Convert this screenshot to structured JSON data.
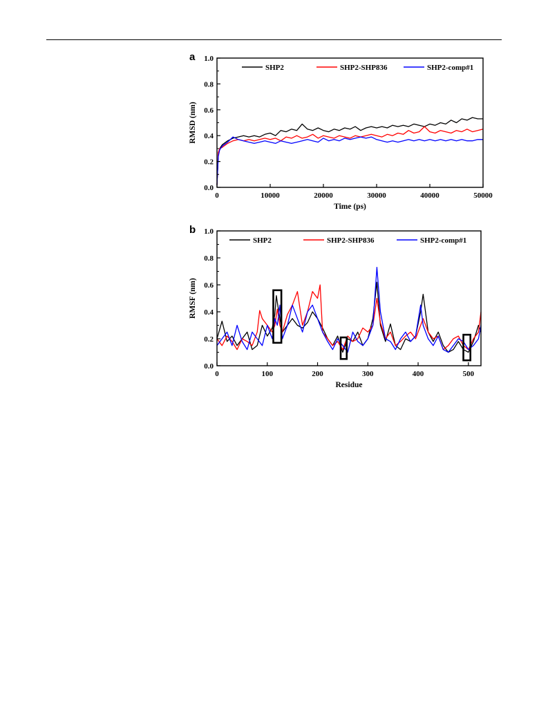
{
  "chart_data": [
    {
      "panel_label": "a",
      "type": "line",
      "xlabel": "Time (ps)",
      "ylabel": "RMSD (nm)",
      "xlim": [
        0,
        50000
      ],
      "ylim": [
        0.0,
        1.0
      ],
      "xticks": [
        "0",
        "10000",
        "20000",
        "30000",
        "40000",
        "50000"
      ],
      "yticks": [
        "0.0",
        "0.2",
        "0.4",
        "0.6",
        "0.8",
        "1.0"
      ],
      "legend_placement": "top",
      "grid": false,
      "series": [
        {
          "name": "SHP2",
          "color": "#000000",
          "x": [
            0,
            250,
            500,
            1000,
            2000,
            3000,
            4000,
            5000,
            6000,
            7000,
            8000,
            9000,
            10000,
            11000,
            12000,
            13000,
            14000,
            15000,
            16000,
            17000,
            18000,
            19000,
            20000,
            21000,
            22000,
            23000,
            24000,
            25000,
            26000,
            27000,
            28000,
            29000,
            30000,
            31000,
            32000,
            33000,
            34000,
            35000,
            36000,
            37000,
            38000,
            39000,
            40000,
            41000,
            42000,
            43000,
            44000,
            45000,
            46000,
            47000,
            48000,
            49000,
            50000
          ],
          "values": [
            0.02,
            0.25,
            0.3,
            0.33,
            0.36,
            0.38,
            0.39,
            0.4,
            0.39,
            0.4,
            0.39,
            0.41,
            0.42,
            0.4,
            0.44,
            0.43,
            0.45,
            0.44,
            0.49,
            0.45,
            0.44,
            0.46,
            0.44,
            0.43,
            0.45,
            0.44,
            0.46,
            0.45,
            0.47,
            0.44,
            0.46,
            0.47,
            0.46,
            0.47,
            0.46,
            0.48,
            0.47,
            0.48,
            0.47,
            0.49,
            0.48,
            0.47,
            0.49,
            0.48,
            0.5,
            0.49,
            0.52,
            0.5,
            0.53,
            0.52,
            0.54,
            0.53,
            0.53
          ]
        },
        {
          "name": "SHP2-SHP836",
          "color": "#ff0000",
          "x": [
            0,
            250,
            500,
            1000,
            2000,
            3000,
            4000,
            5000,
            6000,
            7000,
            8000,
            9000,
            10000,
            11000,
            12000,
            13000,
            14000,
            15000,
            16000,
            17000,
            18000,
            19000,
            20000,
            21000,
            22000,
            23000,
            24000,
            25000,
            26000,
            27000,
            28000,
            29000,
            30000,
            31000,
            32000,
            33000,
            34000,
            35000,
            36000,
            37000,
            38000,
            39000,
            40000,
            41000,
            42000,
            43000,
            44000,
            45000,
            46000,
            47000,
            48000,
            49000,
            50000
          ],
          "values": [
            0.02,
            0.27,
            0.3,
            0.31,
            0.34,
            0.36,
            0.37,
            0.36,
            0.37,
            0.36,
            0.37,
            0.38,
            0.37,
            0.38,
            0.36,
            0.39,
            0.38,
            0.4,
            0.38,
            0.39,
            0.41,
            0.38,
            0.4,
            0.39,
            0.38,
            0.4,
            0.39,
            0.38,
            0.4,
            0.39,
            0.4,
            0.41,
            0.4,
            0.39,
            0.41,
            0.4,
            0.42,
            0.41,
            0.44,
            0.42,
            0.43,
            0.47,
            0.43,
            0.42,
            0.44,
            0.43,
            0.42,
            0.44,
            0.43,
            0.45,
            0.43,
            0.44,
            0.45
          ]
        },
        {
          "name": "SHP2-comp#1",
          "color": "#0000ff",
          "x": [
            0,
            250,
            500,
            1000,
            2000,
            3000,
            4000,
            5000,
            6000,
            7000,
            8000,
            9000,
            10000,
            11000,
            12000,
            13000,
            14000,
            15000,
            16000,
            17000,
            18000,
            19000,
            20000,
            21000,
            22000,
            23000,
            24000,
            25000,
            26000,
            27000,
            28000,
            29000,
            30000,
            31000,
            32000,
            33000,
            34000,
            35000,
            36000,
            37000,
            38000,
            39000,
            40000,
            41000,
            42000,
            43000,
            44000,
            45000,
            46000,
            47000,
            48000,
            49000,
            50000
          ],
          "values": [
            0.02,
            0.24,
            0.29,
            0.32,
            0.35,
            0.39,
            0.37,
            0.36,
            0.35,
            0.34,
            0.35,
            0.36,
            0.35,
            0.34,
            0.36,
            0.35,
            0.34,
            0.35,
            0.36,
            0.37,
            0.36,
            0.35,
            0.38,
            0.36,
            0.37,
            0.36,
            0.38,
            0.37,
            0.38,
            0.39,
            0.38,
            0.39,
            0.37,
            0.36,
            0.35,
            0.36,
            0.35,
            0.36,
            0.37,
            0.36,
            0.37,
            0.36,
            0.37,
            0.36,
            0.37,
            0.36,
            0.37,
            0.36,
            0.37,
            0.36,
            0.36,
            0.37,
            0.37
          ]
        }
      ]
    },
    {
      "panel_label": "b",
      "type": "line",
      "xlabel": "Residue",
      "ylabel": "RMSF (nm)",
      "xlim": [
        0,
        525
      ],
      "ylim": [
        0.0,
        1.0
      ],
      "xticks": [
        "0",
        "100",
        "200",
        "300",
        "400",
        "500"
      ],
      "yticks": [
        "0.0",
        "0.2",
        "0.4",
        "0.6",
        "0.8",
        "1.0"
      ],
      "legend_placement": "top",
      "grid": false,
      "highlight_boxes": [
        {
          "x": [
            112,
            128
          ],
          "y": [
            0.17,
            0.56
          ]
        },
        {
          "x": [
            246,
            258
          ],
          "y": [
            0.05,
            0.21
          ]
        },
        {
          "x": [
            490,
            504
          ],
          "y": [
            0.04,
            0.23
          ]
        }
      ],
      "series": [
        {
          "name": "SHP2",
          "color": "#000000",
          "x": [
            0,
            10,
            20,
            30,
            40,
            50,
            60,
            70,
            80,
            90,
            100,
            110,
            115,
            118,
            120,
            125,
            130,
            140,
            150,
            160,
            170,
            180,
            190,
            200,
            210,
            220,
            230,
            240,
            250,
            260,
            270,
            280,
            290,
            300,
            310,
            318,
            325,
            335,
            345,
            355,
            365,
            375,
            385,
            395,
            405,
            410,
            420,
            430,
            440,
            450,
            460,
            470,
            480,
            490,
            500,
            510,
            520,
            525
          ],
          "values": [
            0.2,
            0.33,
            0.18,
            0.22,
            0.15,
            0.2,
            0.25,
            0.12,
            0.15,
            0.3,
            0.22,
            0.28,
            0.38,
            0.52,
            0.47,
            0.35,
            0.25,
            0.3,
            0.35,
            0.3,
            0.28,
            0.32,
            0.4,
            0.35,
            0.28,
            0.2,
            0.15,
            0.22,
            0.1,
            0.2,
            0.18,
            0.25,
            0.15,
            0.2,
            0.35,
            0.62,
            0.3,
            0.18,
            0.31,
            0.15,
            0.12,
            0.2,
            0.18,
            0.22,
            0.4,
            0.53,
            0.25,
            0.18,
            0.25,
            0.15,
            0.1,
            0.12,
            0.18,
            0.12,
            0.1,
            0.18,
            0.3,
            0.25
          ]
        },
        {
          "name": "SHP2-SHP836",
          "color": "#ff0000",
          "x": [
            0,
            10,
            20,
            30,
            40,
            50,
            60,
            70,
            80,
            85,
            90,
            100,
            110,
            115,
            120,
            125,
            130,
            140,
            150,
            160,
            170,
            180,
            190,
            200,
            205,
            210,
            220,
            230,
            240,
            250,
            260,
            270,
            280,
            290,
            300,
            310,
            318,
            325,
            335,
            345,
            355,
            365,
            375,
            385,
            395,
            405,
            410,
            420,
            430,
            440,
            450,
            460,
            470,
            480,
            490,
            500,
            510,
            520,
            525
          ],
          "values": [
            0.2,
            0.15,
            0.22,
            0.18,
            0.12,
            0.2,
            0.18,
            0.15,
            0.25,
            0.41,
            0.35,
            0.3,
            0.25,
            0.3,
            0.42,
            0.3,
            0.25,
            0.38,
            0.45,
            0.55,
            0.3,
            0.4,
            0.55,
            0.5,
            0.6,
            0.25,
            0.2,
            0.15,
            0.18,
            0.12,
            0.22,
            0.18,
            0.2,
            0.28,
            0.25,
            0.3,
            0.5,
            0.32,
            0.2,
            0.25,
            0.15,
            0.18,
            0.22,
            0.25,
            0.2,
            0.3,
            0.35,
            0.25,
            0.2,
            0.22,
            0.12,
            0.15,
            0.2,
            0.22,
            0.15,
            0.12,
            0.2,
            0.25,
            0.4
          ]
        },
        {
          "name": "SHP2-comp#1",
          "color": "#0000ff",
          "x": [
            0,
            10,
            20,
            30,
            40,
            50,
            60,
            70,
            80,
            90,
            100,
            110,
            115,
            120,
            125,
            130,
            140,
            150,
            160,
            170,
            180,
            190,
            200,
            210,
            220,
            230,
            240,
            250,
            260,
            270,
            280,
            290,
            300,
            310,
            318,
            325,
            335,
            345,
            355,
            365,
            375,
            385,
            395,
            405,
            410,
            420,
            430,
            440,
            450,
            460,
            470,
            480,
            490,
            500,
            510,
            520,
            525
          ],
          "values": [
            0.15,
            0.2,
            0.25,
            0.15,
            0.3,
            0.18,
            0.12,
            0.25,
            0.2,
            0.15,
            0.3,
            0.2,
            0.35,
            0.3,
            0.45,
            0.2,
            0.3,
            0.45,
            0.35,
            0.25,
            0.4,
            0.45,
            0.35,
            0.25,
            0.18,
            0.12,
            0.2,
            0.15,
            0.1,
            0.25,
            0.18,
            0.15,
            0.2,
            0.3,
            0.73,
            0.4,
            0.2,
            0.18,
            0.12,
            0.2,
            0.25,
            0.18,
            0.22,
            0.45,
            0.3,
            0.2,
            0.15,
            0.22,
            0.12,
            0.1,
            0.15,
            0.2,
            0.18,
            0.12,
            0.15,
            0.2,
            0.3
          ]
        }
      ]
    }
  ]
}
